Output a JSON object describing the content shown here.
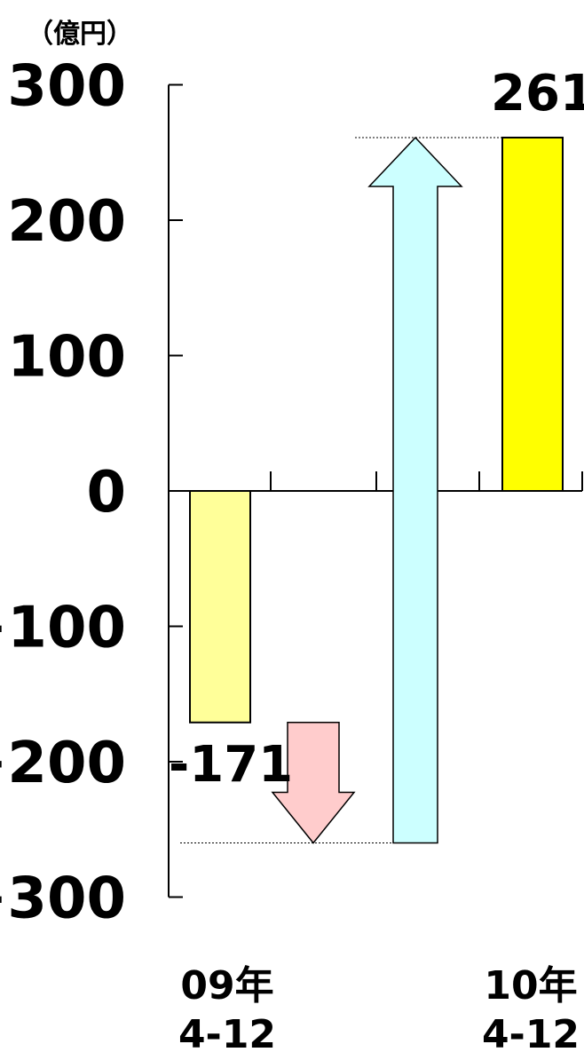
{
  "chart_data": {
    "type": "bar",
    "unit_label": "（億円）",
    "ylim": [
      -300,
      300
    ],
    "yticks": [
      300,
      200,
      100,
      0,
      -100,
      -200,
      -300
    ],
    "categories": [
      {
        "line1": "09年",
        "line2": "4-12",
        "value": -171,
        "value_label": "-171",
        "color": "#ffff99"
      },
      {
        "line1": "10年",
        "line2": "4-12",
        "value": 261,
        "value_label": "261",
        "color": "#ffff00"
      }
    ],
    "reference_level": -260,
    "arrows": [
      {
        "name": "decrease-arrow",
        "from": -171,
        "to": -260,
        "color": "#ffcccc"
      },
      {
        "name": "increase-arrow",
        "from": -260,
        "to": 261,
        "color": "#ccffff"
      }
    ],
    "grid": false
  }
}
